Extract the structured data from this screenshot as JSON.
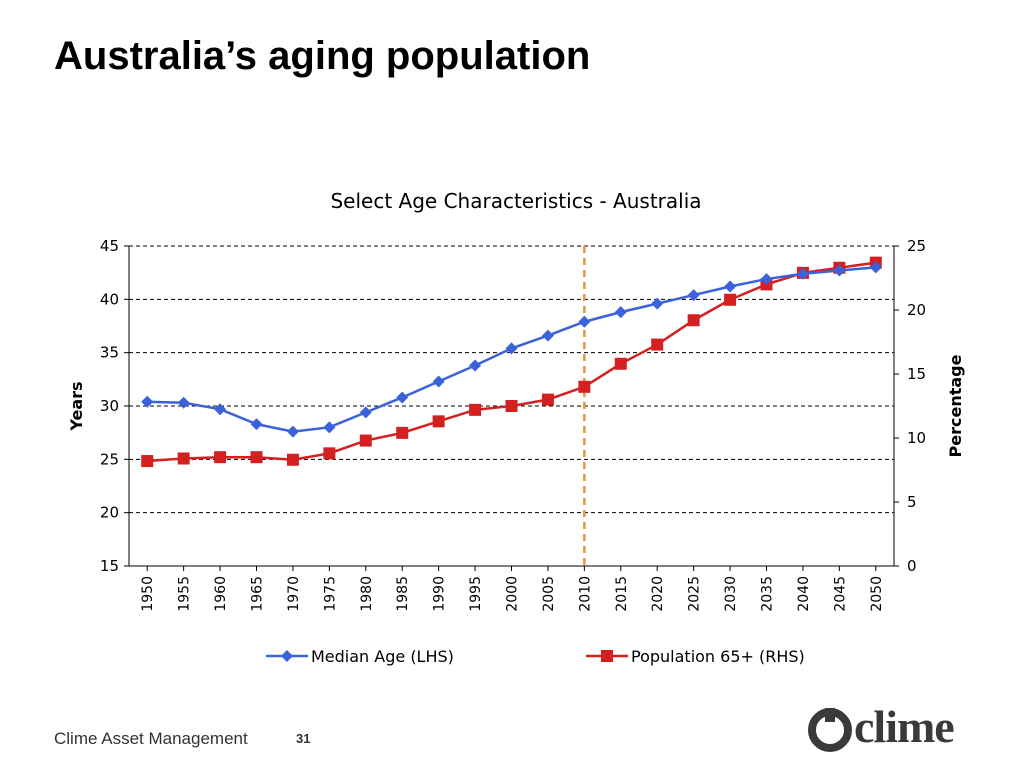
{
  "slide": {
    "title": "Australia’s aging population",
    "footer": "Clime Asset Management",
    "page_number": "31",
    "logo_text": "clime"
  },
  "chart_data": {
    "type": "line",
    "title": "Select Age Characteristics - Australia",
    "ylabel_left": "Years",
    "ylabel_right": "Percentage",
    "ylim_left": [
      15,
      45
    ],
    "ylim_right": [
      0,
      25
    ],
    "yticks_left": [
      15,
      20,
      25,
      30,
      35,
      40,
      45
    ],
    "yticks_right": [
      0,
      5,
      10,
      15,
      20,
      25
    ],
    "categories": [
      "1950",
      "1955",
      "1960",
      "1965",
      "1970",
      "1975",
      "1980",
      "1985",
      "1990",
      "1995",
      "2000",
      "2005",
      "2010",
      "2015",
      "2020",
      "2025",
      "2030",
      "2035",
      "2040",
      "2045",
      "2050"
    ],
    "grid": "horizontal dashed",
    "reference_line": {
      "x": "2010",
      "style": "dashed",
      "color": "#e8963c"
    },
    "legend_position": "bottom",
    "series": [
      {
        "name": "Median Age (LHS)",
        "axis": "left",
        "color": "#3b62db",
        "marker": "diamond",
        "values": [
          30.4,
          30.3,
          29.7,
          28.3,
          27.6,
          28.0,
          29.4,
          30.8,
          32.3,
          33.8,
          35.4,
          36.6,
          37.9,
          38.8,
          39.6,
          40.4,
          41.2,
          41.9,
          42.4,
          42.7,
          43.0
        ]
      },
      {
        "name": "Population 65+ (RHS)",
        "axis": "right",
        "color": "#d42020",
        "marker": "square",
        "values": [
          8.2,
          8.4,
          8.5,
          8.5,
          8.3,
          8.8,
          9.8,
          10.4,
          11.3,
          12.2,
          12.5,
          13.0,
          14.0,
          15.8,
          17.3,
          19.2,
          20.8,
          22.0,
          22.9,
          23.3,
          23.7
        ]
      }
    ]
  }
}
